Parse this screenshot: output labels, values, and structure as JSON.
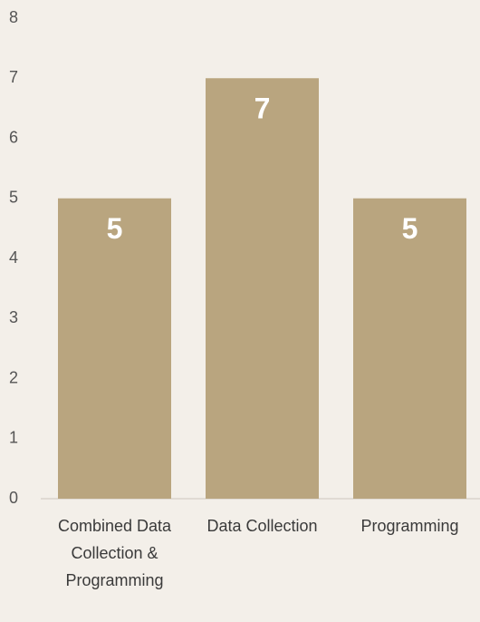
{
  "chart_data": {
    "type": "bar",
    "categories": [
      "Combined Data Collection & Programming",
      "Data Collection",
      "Programming"
    ],
    "values": [
      5,
      7,
      5
    ],
    "color": "#b9a57f",
    "ylim": [
      0,
      8
    ],
    "yticks": [
      0,
      1,
      2,
      3,
      4,
      5,
      6,
      7,
      8
    ],
    "grid": false,
    "data_labels": true
  }
}
